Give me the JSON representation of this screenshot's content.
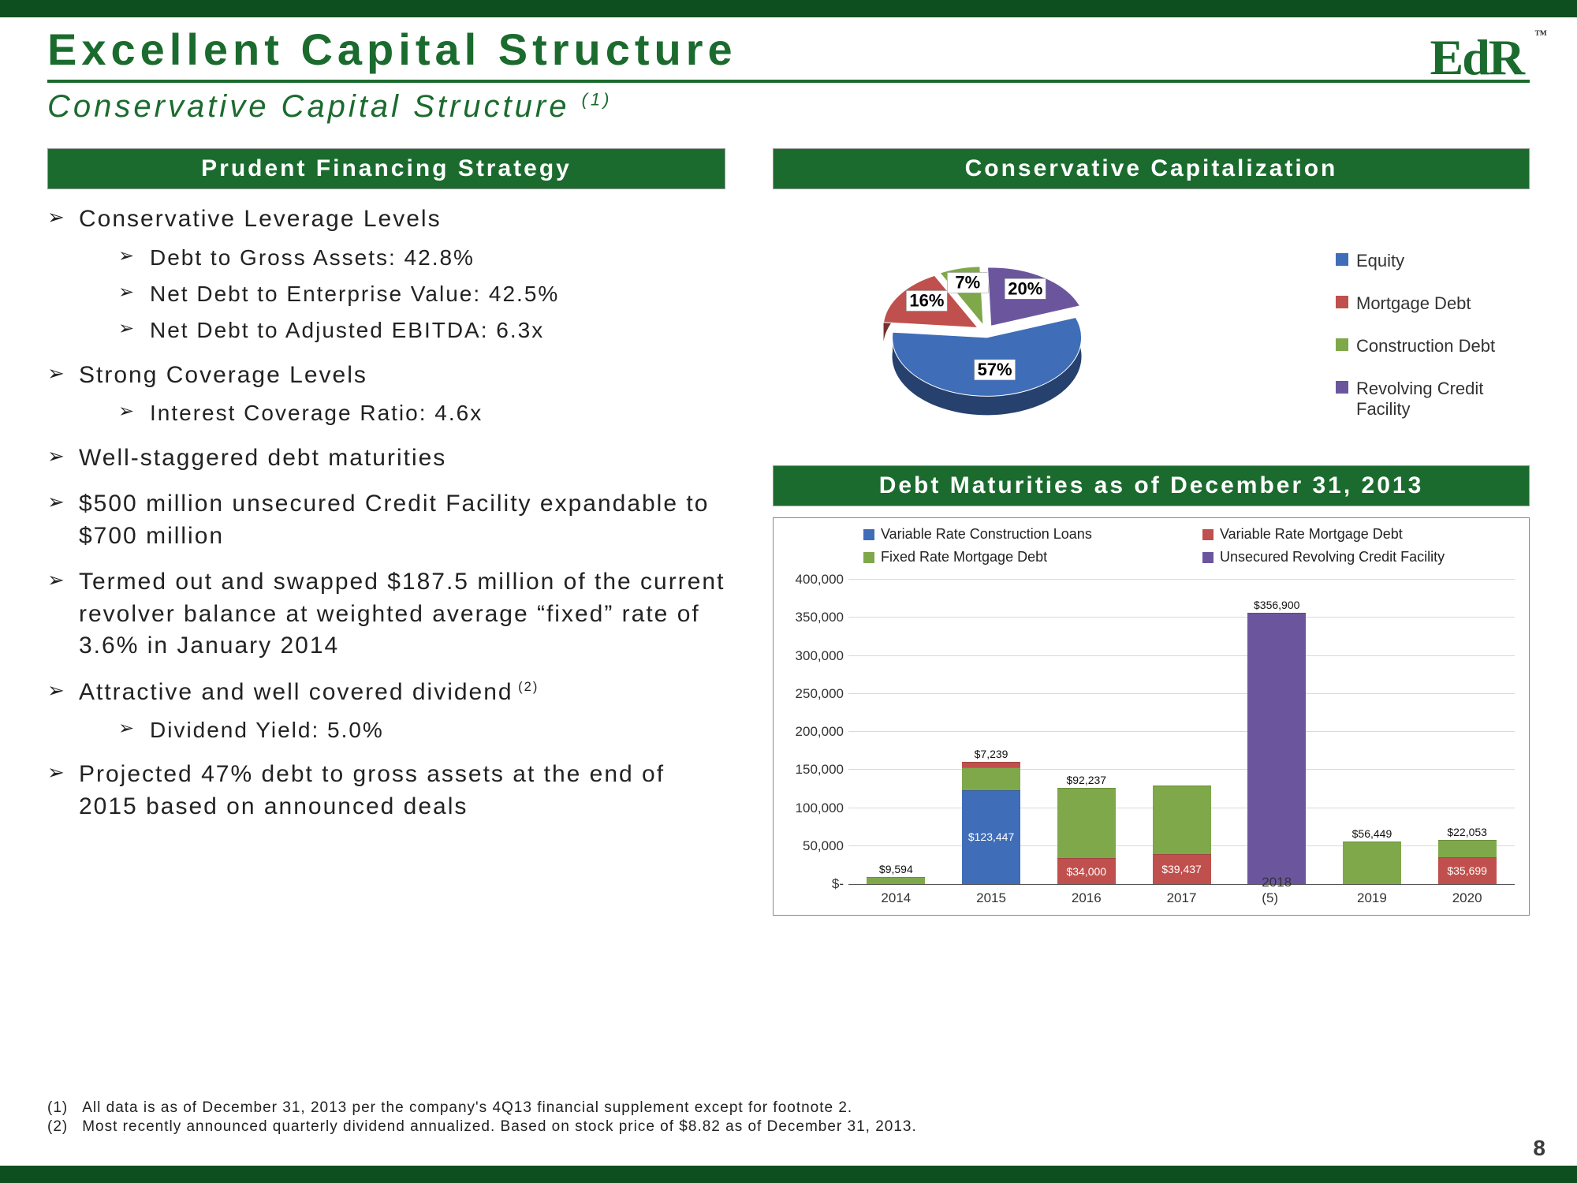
{
  "colors": {
    "brand_green": "#1b6b2e",
    "dark_bar": "#0e4f20",
    "title_color": "#1b6b2e",
    "subtitle_color": "#1b6b2e",
    "text": "#222222",
    "hr": "#1b6b2e"
  },
  "page_number": "8",
  "logo_text": "EdR",
  "title": "Excellent Capital Structure",
  "subtitle": "Conservative Capital Structure",
  "subtitle_sup": "(1)",
  "left": {
    "header": "Prudent Financing Strategy",
    "items": [
      {
        "text": "Conservative Leverage Levels",
        "sub": [
          "Debt to Gross Assets: 42.8%",
          "Net Debt to Enterprise Value: 42.5%",
          "Net Debt to Adjusted EBITDA: 6.3x"
        ]
      },
      {
        "text": "Strong Coverage Levels",
        "sub": [
          "Interest Coverage Ratio: 4.6x"
        ]
      },
      {
        "text": "Well-staggered debt maturities",
        "sub": []
      },
      {
        "text": "$500 million unsecured Credit Facility expandable to $700 million",
        "sub": []
      },
      {
        "text": "Termed out and swapped $187.5 million of the current revolver balance at weighted average “fixed” rate of 3.6% in January 2014",
        "sub": []
      },
      {
        "text": "Attractive and well covered dividend",
        "sup": "(2)",
        "sub": [
          "Dividend Yield: 5.0%"
        ]
      },
      {
        "text": "Projected 47% debt to gross assets at the end of 2015 based on announced deals",
        "sub": []
      }
    ]
  },
  "right_top": {
    "header": "Conservative Capitalization",
    "pie": {
      "type": "pie",
      "slices": [
        {
          "label": "Equity",
          "pct": 57,
          "color": "#3f6db8"
        },
        {
          "label": "Mortgage Debt",
          "pct": 16,
          "color": "#c0504d"
        },
        {
          "label": "Construction Debt",
          "pct": 7,
          "color": "#7fa84a"
        },
        {
          "label": "Revolving Credit Facility",
          "pct": 20,
          "color": "#6b569e"
        }
      ],
      "label_font_size": 22,
      "legend_font_size": 22
    }
  },
  "right_bottom": {
    "header": "Debt Maturities as of December 31, 2013",
    "chart": {
      "type": "stacked-bar",
      "y_max": 400000,
      "y_min": 0,
      "y_tick_step": 50000,
      "y_tick_labels": [
        "$-",
        "50,000",
        "100,000",
        "150,000",
        "200,000",
        "250,000",
        "300,000",
        "350,000",
        "400,000"
      ],
      "legend": [
        {
          "label": "Variable Rate Construction Loans",
          "color": "#3f6db8"
        },
        {
          "label": "Variable Rate Mortgage Debt",
          "color": "#c0504d"
        },
        {
          "label": "Fixed Rate Mortgage Debt",
          "color": "#7fa84a"
        },
        {
          "label": "Unsecured Revolving Credit Facility",
          "color": "#6b569e"
        }
      ],
      "categories": [
        "2014",
        "2015",
        "2016",
        "2017",
        "2018 (5)",
        "2019",
        "2020"
      ],
      "stacks": [
        [
          {
            "series": 2,
            "value": 9594,
            "label": "$9,594"
          }
        ],
        [
          {
            "series": 0,
            "value": 123447,
            "label": "$123,447"
          },
          {
            "series": 2,
            "value": 30000,
            "label": ""
          },
          {
            "series": 1,
            "value": 7239,
            "label": "$7,239"
          }
        ],
        [
          {
            "series": 1,
            "value": 34000,
            "label": "$34,000"
          },
          {
            "series": 2,
            "value": 92237,
            "label": "$92,237"
          }
        ],
        [
          {
            "series": 1,
            "value": 39437,
            "label": "$39,437"
          },
          {
            "series": 2,
            "value": 90000,
            "label": ""
          }
        ],
        [
          {
            "series": 3,
            "value": 356900,
            "label": "$356,900"
          }
        ],
        [
          {
            "series": 2,
            "value": 56449,
            "label": "$56,449"
          }
        ],
        [
          {
            "series": 1,
            "value": 35699,
            "label": "$35,699"
          },
          {
            "series": 2,
            "value": 22053,
            "label": "$22,053"
          }
        ]
      ],
      "grid_color": "#d9d9d9",
      "axis_color": "#555555",
      "label_font_size": 17
    }
  },
  "footnotes": [
    {
      "num": "(1)",
      "text": "All data is as of December 31, 2013 per the company's 4Q13 financial supplement except for footnote 2."
    },
    {
      "num": "(2)",
      "text": "Most recently announced quarterly dividend annualized.  Based on stock price of $8.82 as of December 31, 2013."
    }
  ]
}
